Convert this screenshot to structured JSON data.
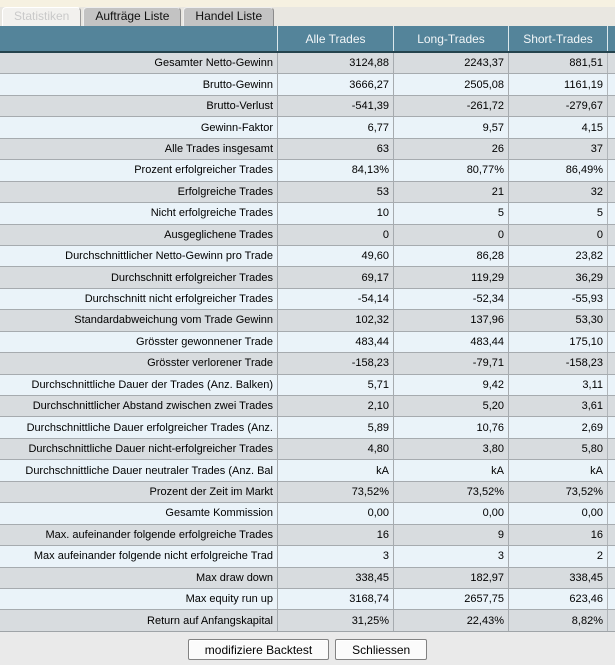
{
  "tabs": [
    {
      "label": "Statistiken",
      "active": true
    },
    {
      "label": "Aufträge Liste",
      "active": false
    },
    {
      "label": "Handel Liste",
      "active": false
    }
  ],
  "table": {
    "columns": [
      "Alle Trades",
      "Long-Trades",
      "Short-Trades"
    ],
    "rows": [
      {
        "label": "Gesamter Netto-Gewinn",
        "alle": "3124,88",
        "long": "2243,37",
        "short": "881,51"
      },
      {
        "label": "Brutto-Gewinn",
        "alle": "3666,27",
        "long": "2505,08",
        "short": "1161,19"
      },
      {
        "label": "Brutto-Verlust",
        "alle": "-541,39",
        "long": "-261,72",
        "short": "-279,67"
      },
      {
        "label": "Gewinn-Faktor",
        "alle": "6,77",
        "long": "9,57",
        "short": "4,15"
      },
      {
        "label": "Alle Trades insgesamt",
        "alle": "63",
        "long": "26",
        "short": "37"
      },
      {
        "label": "Prozent erfolgreicher Trades",
        "alle": "84,13%",
        "long": "80,77%",
        "short": "86,49%"
      },
      {
        "label": "Erfolgreiche Trades",
        "alle": "53",
        "long": "21",
        "short": "32"
      },
      {
        "label": "Nicht erfolgreiche Trades",
        "alle": "10",
        "long": "5",
        "short": "5"
      },
      {
        "label": "Ausgeglichene Trades",
        "alle": "0",
        "long": "0",
        "short": "0"
      },
      {
        "label": "Durchschnittlicher Netto-Gewinn pro Trade",
        "alle": "49,60",
        "long": "86,28",
        "short": "23,82"
      },
      {
        "label": "Durchschnitt erfolgreicher Trades",
        "alle": "69,17",
        "long": "119,29",
        "short": "36,29"
      },
      {
        "label": "Durchschnitt nicht erfolgreicher Trades",
        "alle": "-54,14",
        "long": "-52,34",
        "short": "-55,93"
      },
      {
        "label": "Standardabweichung vom Trade Gewinn",
        "alle": "102,32",
        "long": "137,96",
        "short": "53,30"
      },
      {
        "label": "Grösster gewonnener Trade",
        "alle": "483,44",
        "long": "483,44",
        "short": "175,10"
      },
      {
        "label": "Grösster verlorener Trade",
        "alle": "-158,23",
        "long": "-79,71",
        "short": "-158,23"
      },
      {
        "label": "Durchschnittliche Dauer der Trades (Anz. Balken)",
        "alle": "5,71",
        "long": "9,42",
        "short": "3,11"
      },
      {
        "label": "Durchschnittlicher Abstand zwischen zwei Trades",
        "alle": "2,10",
        "long": "5,20",
        "short": "3,61"
      },
      {
        "label": "Durchschnittliche Dauer erfolgreicher Trades (Anz.",
        "alle": "5,89",
        "long": "10,76",
        "short": "2,69"
      },
      {
        "label": "Durchschnittliche Dauer nicht-erfolgreicher Trades",
        "alle": "4,80",
        "long": "3,80",
        "short": "5,80"
      },
      {
        "label": "Durchschnittliche Dauer neutraler Trades (Anz. Bal",
        "alle": "kA",
        "long": "kA",
        "short": "kA"
      },
      {
        "label": "Prozent der Zeit im Markt",
        "alle": "73,52%",
        "long": "73,52%",
        "short": "73,52%"
      },
      {
        "label": "Gesamte Kommission",
        "alle": "0,00",
        "long": "0,00",
        "short": "0,00"
      },
      {
        "label": "Max. aufeinander folgende erfolgreiche Trades",
        "alle": "16",
        "long": "9",
        "short": "16"
      },
      {
        "label": "Max aufeinander folgende nicht erfolgreiche Trad",
        "alle": "3",
        "long": "3",
        "short": "2"
      },
      {
        "label": "Max draw down",
        "alle": "338,45",
        "long": "182,97",
        "short": "338,45"
      },
      {
        "label": "Max equity run up",
        "alle": "3168,74",
        "long": "2657,75",
        "short": "623,46"
      },
      {
        "label": "Return auf Anfangskapital",
        "alle": "31,25%",
        "long": "22,43%",
        "short": "8,82%"
      }
    ]
  },
  "buttons": {
    "modify": "modifiziere Backtest",
    "close": "Schliessen"
  },
  "colors": {
    "header_teal": "#54849A",
    "header_border": "#24434D",
    "row_odd": "#D8DCDF",
    "row_even": "#EAF3F9",
    "top_strip_cream": "#F6F1E1"
  }
}
